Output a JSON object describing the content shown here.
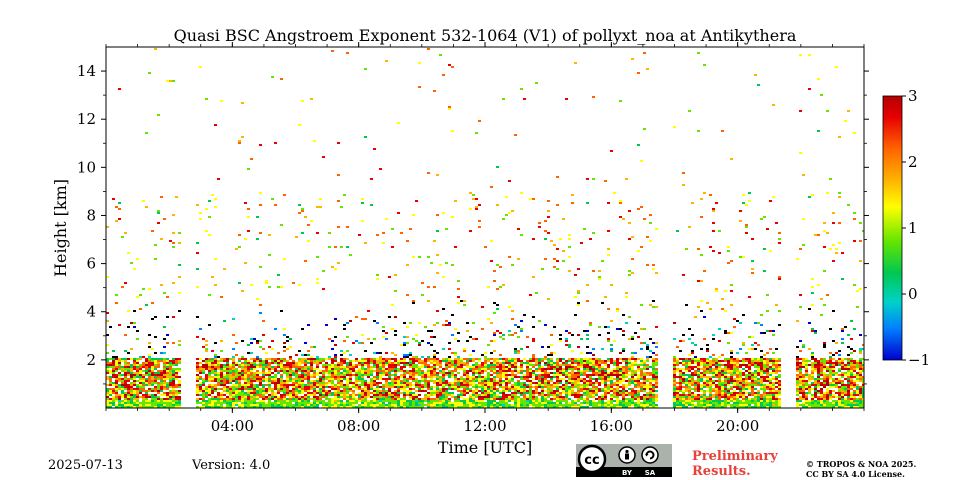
{
  "chart_data": {
    "type": "heatmap",
    "title": "Quasi BSC Angstroem Exponent 532-1064 (V1) of pollyxt_noa at Antikythera",
    "xlabel": "Time [UTC]",
    "ylabel": "Height [km]",
    "xlim": [
      0,
      24
    ],
    "ylim": [
      0,
      15
    ],
    "xticks": [
      {
        "value": 4,
        "label": "04:00"
      },
      {
        "value": 8,
        "label": "08:00"
      },
      {
        "value": 12,
        "label": "12:00"
      },
      {
        "value": 16,
        "label": "16:00"
      },
      {
        "value": 20,
        "label": "20:00"
      }
    ],
    "yticks": [
      {
        "value": 2,
        "label": "2"
      },
      {
        "value": 4,
        "label": "4"
      },
      {
        "value": 6,
        "label": "6"
      },
      {
        "value": 8,
        "label": "8"
      },
      {
        "value": 10,
        "label": "10"
      },
      {
        "value": 12,
        "label": "12"
      },
      {
        "value": 14,
        "label": "14"
      }
    ],
    "data_gaps_hours": [
      [
        2.3,
        2.8
      ],
      [
        17.4,
        17.9
      ],
      [
        21.3,
        21.8
      ]
    ],
    "colorbar": {
      "range": [
        -1,
        3
      ],
      "ticks": [
        {
          "value": -1,
          "label": "−1"
        },
        {
          "value": 0,
          "label": "0"
        },
        {
          "value": 1,
          "label": "1"
        },
        {
          "value": 2,
          "label": "2"
        },
        {
          "value": 3,
          "label": "3"
        }
      ],
      "colormap": [
        "#0000cc",
        "#0080ff",
        "#00d2c8",
        "#00c850",
        "#64e600",
        "#ffff00",
        "#ffb400",
        "#ff6400",
        "#e60000",
        "#b40000"
      ]
    }
  },
  "footer": {
    "date": "2025-07-13",
    "version": "Version: 4.0",
    "preliminary_line1": "Preliminary",
    "preliminary_line2": "Results.",
    "copyright_line1": "© TROPOS & NOA 2025.",
    "copyright_line2": "CC BY SA 4.0 License.",
    "cc_by": "BY",
    "cc_sa": "SA",
    "cc_mark": "cc"
  }
}
